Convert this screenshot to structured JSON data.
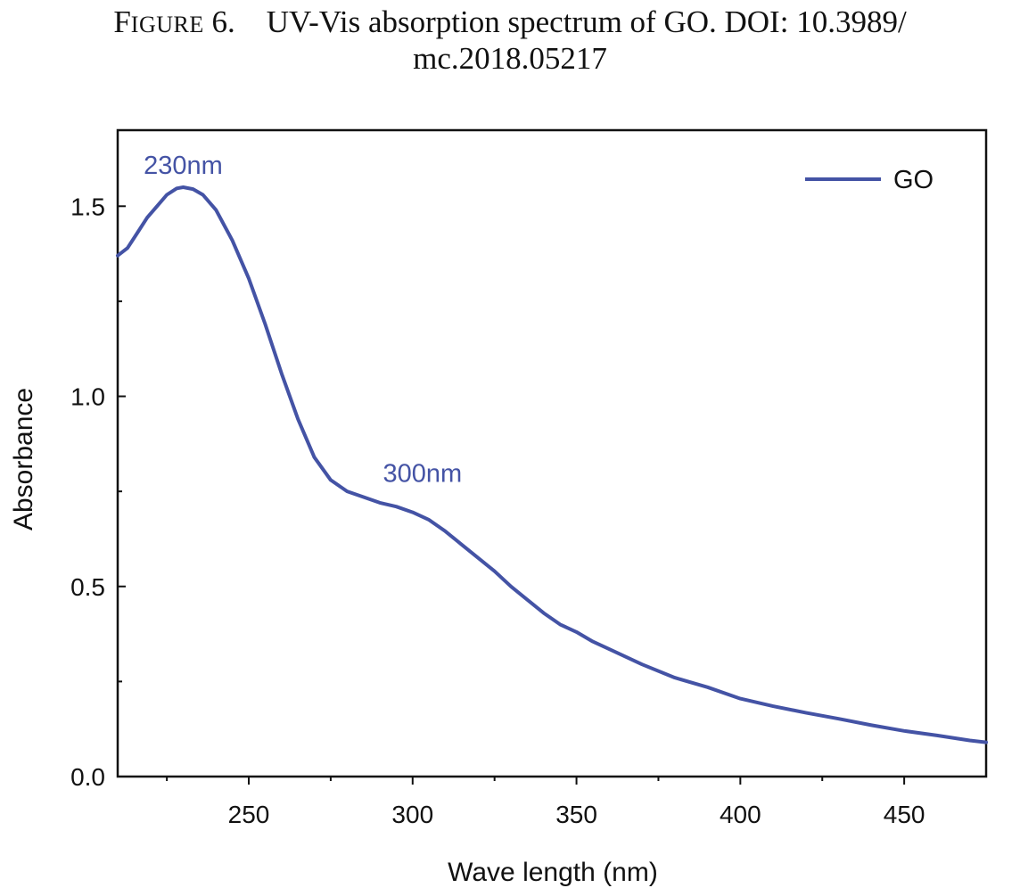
{
  "caption": {
    "label_first": "F",
    "label_rest": "IGURE",
    "number": "6.",
    "line1": "UV-Vis absorption spectrum of GO. DOI: 10.3989/",
    "line2": "mc.2018.05217"
  },
  "chart_data": {
    "type": "line",
    "title": "",
    "xlabel": "Wave length (nm)",
    "ylabel": "Absorbance",
    "xlim": [
      210,
      475
    ],
    "ylim": [
      0.0,
      1.7
    ],
    "xticks": [
      250,
      300,
      350,
      400,
      450
    ],
    "xtick_labels": [
      "250",
      "300",
      "350",
      "400",
      "450"
    ],
    "xminor_ticks": [
      225,
      275,
      325,
      375,
      425
    ],
    "yticks": [
      0.0,
      0.5,
      1.0,
      1.5
    ],
    "ytick_labels": [
      "0.0",
      "0.5",
      "1.0",
      "1.5"
    ],
    "yminor_ticks": [
      0.25,
      0.75,
      1.25
    ],
    "grid": false,
    "legend_position": "top-right",
    "series": [
      {
        "name": "GO",
        "color": "#4453a5",
        "x": [
          210,
          213,
          216,
          219,
          222,
          225,
          228,
          230,
          233,
          236,
          240,
          245,
          250,
          255,
          260,
          265,
          270,
          275,
          280,
          285,
          290,
          295,
          300,
          305,
          310,
          315,
          320,
          325,
          330,
          335,
          340,
          345,
          350,
          355,
          360,
          370,
          380,
          390,
          400,
          410,
          420,
          430,
          440,
          450,
          460,
          470,
          475
        ],
        "y": [
          1.37,
          1.39,
          1.43,
          1.47,
          1.5,
          1.53,
          1.547,
          1.55,
          1.545,
          1.53,
          1.49,
          1.41,
          1.31,
          1.19,
          1.06,
          0.94,
          0.84,
          0.78,
          0.75,
          0.735,
          0.72,
          0.71,
          0.695,
          0.675,
          0.645,
          0.61,
          0.575,
          0.54,
          0.5,
          0.465,
          0.43,
          0.4,
          0.38,
          0.355,
          0.335,
          0.295,
          0.26,
          0.235,
          0.205,
          0.185,
          0.168,
          0.152,
          0.135,
          0.12,
          0.108,
          0.095,
          0.09
        ]
      }
    ],
    "annotations": [
      {
        "text": "230nm",
        "x": 230,
        "y": 1.585
      },
      {
        "text": "300nm",
        "x": 303,
        "y": 0.775
      }
    ]
  }
}
